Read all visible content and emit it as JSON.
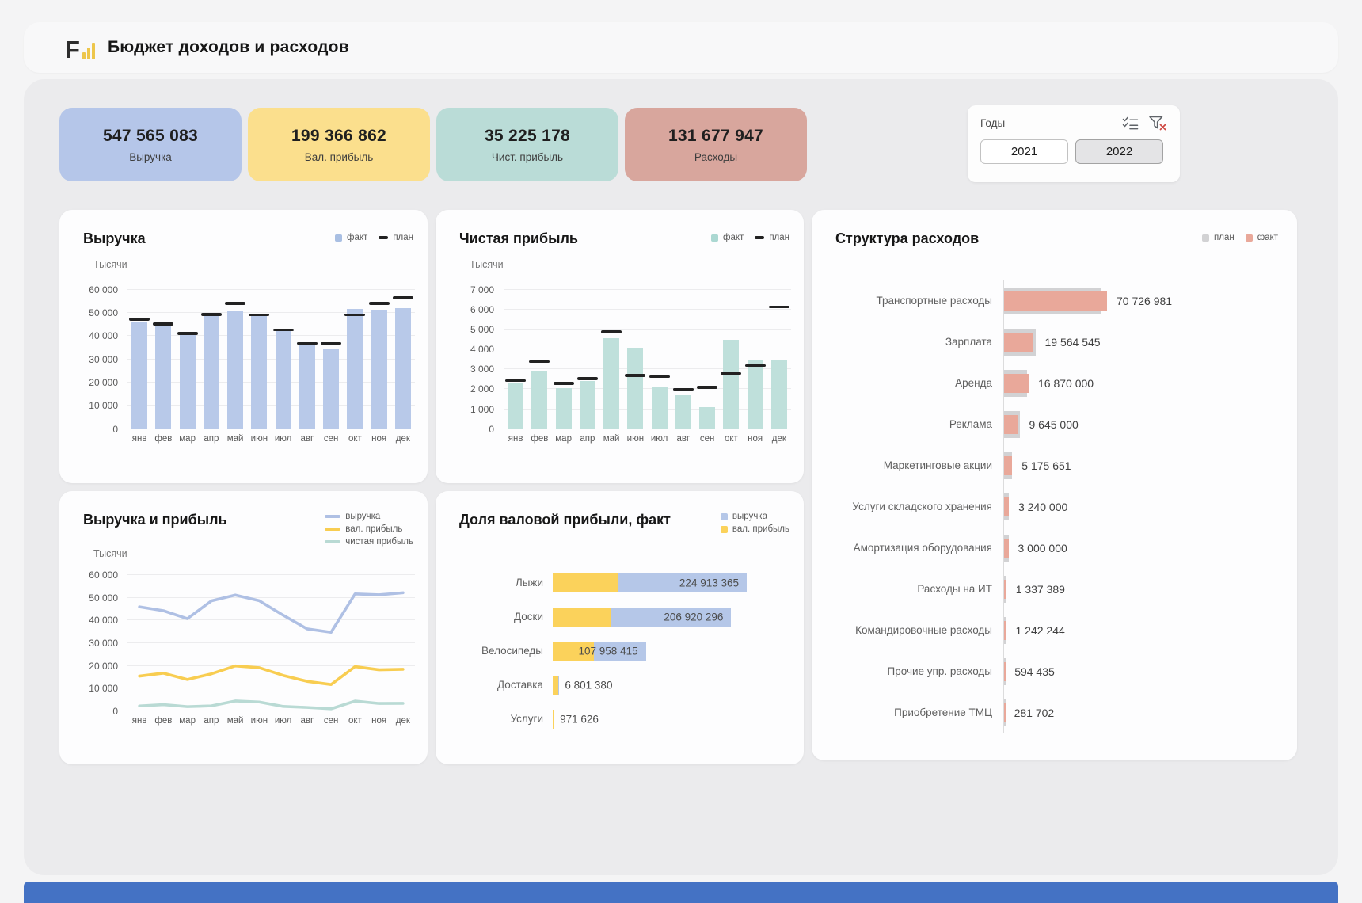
{
  "header": {
    "title": "Бюджет доходов и расходов",
    "logo_text": "F"
  },
  "kpi_cards": [
    {
      "value": "547 565 083",
      "label": "Выручка",
      "color": "#b5c6e9"
    },
    {
      "value": "199 366 862",
      "label": "Вал. прибыль",
      "color": "#fbdf8d"
    },
    {
      "value": "35 225 178",
      "label": "Чист. прибыль",
      "color": "#badcd7"
    },
    {
      "value": "131 677 947",
      "label": "Расходы",
      "color": "#d8a69d"
    }
  ],
  "filter": {
    "label": "Годы",
    "icons": [
      "multiselect-icon",
      "clear-filter-icon"
    ],
    "years": [
      {
        "label": "2021",
        "selected": false
      },
      {
        "label": "2022",
        "selected": true
      }
    ]
  },
  "bottom_bar_color": "#4472c4",
  "chart_data": [
    {
      "id": "revenue",
      "type": "bar",
      "title": "Выручка",
      "unit_label": "Тысячи",
      "legend": [
        {
          "label": "факт",
          "color": "#a9bfe3",
          "shape": "square"
        },
        {
          "label": "план",
          "color": "#222222",
          "shape": "dash"
        }
      ],
      "categories": [
        "янв",
        "фев",
        "мар",
        "апр",
        "май",
        "июн",
        "июл",
        "авг",
        "сен",
        "окт",
        "ноя",
        "дек"
      ],
      "ylim": [
        0,
        60000
      ],
      "yticks": [
        {
          "v": 60000,
          "label": "60 000"
        },
        {
          "v": 50000,
          "label": "50 000"
        },
        {
          "v": 40000,
          "label": "40 000"
        },
        {
          "v": 30000,
          "label": "30 000"
        },
        {
          "v": 20000,
          "label": "20 000"
        },
        {
          "v": 10000,
          "label": "10 000"
        },
        {
          "v": 0,
          "label": "0"
        }
      ],
      "series": [
        {
          "name": "факт",
          "type": "bar",
          "color": "#b8c9e9",
          "values": [
            46000,
            44300,
            40800,
            48600,
            51200,
            48700,
            42300,
            36300,
            34800,
            51700,
            51300,
            52200
          ]
        },
        {
          "name": "план",
          "type": "tick",
          "color": "#222222",
          "values": [
            47300,
            45300,
            41300,
            49500,
            54200,
            49300,
            42800,
            37000,
            37000,
            49200,
            54200,
            56500
          ]
        }
      ]
    },
    {
      "id": "net_profit",
      "type": "bar",
      "title": "Чистая прибыль",
      "unit_label": "Тысячи",
      "legend": [
        {
          "label": "факт",
          "color": "#abd8d2",
          "shape": "square"
        },
        {
          "label": "план",
          "color": "#222222",
          "shape": "dash"
        }
      ],
      "categories": [
        "янв",
        "фев",
        "мар",
        "апр",
        "май",
        "июн",
        "июл",
        "авг",
        "сен",
        "окт",
        "ноя",
        "дек"
      ],
      "ylim": [
        0,
        7000
      ],
      "yticks": [
        {
          "v": 7000,
          "label": "7 000"
        },
        {
          "v": 6000,
          "label": "6 000"
        },
        {
          "v": 5000,
          "label": "5 000"
        },
        {
          "v": 4000,
          "label": "4 000"
        },
        {
          "v": 3000,
          "label": "3 000"
        },
        {
          "v": 2000,
          "label": "2 000"
        },
        {
          "v": 1000,
          "label": "1 000"
        },
        {
          "v": 0,
          "label": "0"
        }
      ],
      "series": [
        {
          "name": "факт",
          "type": "bar",
          "color": "#bfe0db",
          "values": [
            2350,
            2950,
            2050,
            2400,
            4550,
            4100,
            2150,
            1700,
            1100,
            4500,
            3450,
            3500
          ]
        },
        {
          "name": "план",
          "type": "tick",
          "color": "#222222",
          "values": [
            2450,
            3400,
            2300,
            2550,
            4900,
            2700,
            2650,
            2000,
            2100,
            2800,
            3200,
            6150
          ]
        }
      ]
    },
    {
      "id": "expense_structure",
      "type": "bar_h",
      "title": "Структура расходов",
      "legend": [
        {
          "label": "план",
          "color": "#d2d2d4",
          "shape": "square"
        },
        {
          "label": "факт",
          "color": "#e9a89a",
          "shape": "square"
        }
      ],
      "categories": [
        "Транспортные расходы",
        "Зарплата",
        "Аренда",
        "Реклама",
        "Маркетинговые акции",
        "Услуги складского хранения",
        "Амортизация оборудования",
        "Расходы на ИТ",
        "Командировочные расходы",
        "Прочие упр. расходы",
        "Приобретение ТМЦ"
      ],
      "xmax": 70726981,
      "series": [
        {
          "name": "план",
          "color": "#d2d2d4",
          "values": [
            67000000,
            21500000,
            16000000,
            10600000,
            5600000,
            3240000,
            3000000,
            1450000,
            1350000,
            650000,
            300000
          ]
        },
        {
          "name": "факт",
          "color": "#e9a89a",
          "values": [
            70726981,
            19564545,
            16870000,
            9645000,
            5175651,
            3240000,
            3000000,
            1337389,
            1242244,
            594435,
            281702
          ],
          "labels": [
            "70 726 981",
            "19 564 545",
            "16 870 000",
            "9 645 000",
            "5 175 651",
            "3 240 000",
            "3 000 000",
            "1 337 389",
            "1 242 244",
            "594 435",
            "281 702"
          ]
        }
      ]
    },
    {
      "id": "revenue_and_profit",
      "type": "line",
      "title": "Выручка и прибыль",
      "unit_label": "Тысячи",
      "legend": [
        {
          "label": "выручка",
          "color": "#afc0e4",
          "shape": "line"
        },
        {
          "label": "вал. прибыль",
          "color": "#f8cd51",
          "shape": "line"
        },
        {
          "label": "чистая прибыль",
          "color": "#b9dad4",
          "shape": "line"
        }
      ],
      "categories": [
        "янв",
        "фев",
        "мар",
        "апр",
        "май",
        "июн",
        "июл",
        "авг",
        "сен",
        "окт",
        "ноя",
        "дек"
      ],
      "ylim": [
        0,
        60000
      ],
      "yticks": [
        {
          "v": 60000,
          "label": "60 000"
        },
        {
          "v": 50000,
          "label": "50 000"
        },
        {
          "v": 40000,
          "label": "40 000"
        },
        {
          "v": 30000,
          "label": "30 000"
        },
        {
          "v": 20000,
          "label": "20 000"
        },
        {
          "v": 10000,
          "label": "10 000"
        },
        {
          "v": 0,
          "label": "0"
        }
      ],
      "series": [
        {
          "name": "выручка",
          "color": "#afc0e4",
          "values": [
            46000,
            44300,
            40800,
            48600,
            51200,
            48700,
            42300,
            36300,
            34800,
            51700,
            51300,
            52200
          ]
        },
        {
          "name": "вал. прибыль",
          "color": "#f8cd51",
          "values": [
            15500,
            16800,
            14000,
            16500,
            20000,
            19200,
            15800,
            13200,
            11800,
            19700,
            18300,
            18500
          ]
        },
        {
          "name": "чистая прибыль",
          "color": "#b9dad4",
          "values": [
            2350,
            2950,
            2050,
            2400,
            4550,
            4100,
            2150,
            1700,
            1100,
            4500,
            3450,
            3500
          ]
        }
      ]
    },
    {
      "id": "gross_profit_share",
      "type": "stacked_bar_h",
      "title": "Доля валовой прибыли, факт",
      "legend": [
        {
          "label": "выручка",
          "color": "#b5c7e8",
          "shape": "square"
        },
        {
          "label": "вал. прибыль",
          "color": "#fbd25b",
          "shape": "square"
        }
      ],
      "categories": [
        "Лыжи",
        "Доски",
        "Велосипеды",
        "Доставка",
        "Услуги"
      ],
      "xmax": 224913365,
      "labels": [
        "224 913 365",
        "206 920 296",
        "107 958 415",
        "6 801 380",
        "971 626"
      ],
      "series": [
        {
          "name": "вал. прибыль",
          "color": "#fbd25b",
          "values": [
            76000000,
            68000000,
            48000000,
            6400000,
            950000
          ]
        },
        {
          "name": "выручка",
          "color": "#b5c7e8",
          "values": [
            224913365,
            206920296,
            107958415,
            6801380,
            971626
          ]
        }
      ]
    }
  ]
}
